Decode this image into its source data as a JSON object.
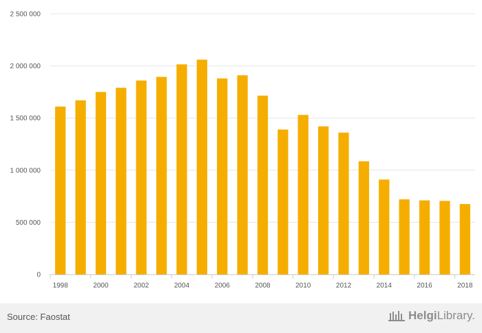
{
  "chart_data": {
    "type": "bar",
    "categories": [
      "1998",
      "1999",
      "2000",
      "2001",
      "2002",
      "2003",
      "2004",
      "2005",
      "2006",
      "2007",
      "2008",
      "2009",
      "2010",
      "2011",
      "2012",
      "2013",
      "2014",
      "2015",
      "2016",
      "2017",
      "2018"
    ],
    "values": [
      1610000,
      1670000,
      1750000,
      1790000,
      1860000,
      1895000,
      2015000,
      2060000,
      1880000,
      1910000,
      1715000,
      1390000,
      1530000,
      1420000,
      1360000,
      1085000,
      910000,
      720000,
      710000,
      705000,
      675000
    ],
    "x_tick_labels": [
      "1998",
      "2000",
      "2002",
      "2004",
      "2006",
      "2008",
      "2010",
      "2012",
      "2014",
      "2016",
      "2018"
    ],
    "y_ticks": [
      0,
      500000,
      1000000,
      1500000,
      2000000,
      2500000
    ],
    "y_tick_labels": [
      "0",
      "500 000",
      "1 000 000",
      "1 500 000",
      "2 000 000",
      "2 500 000"
    ],
    "ylim": [
      0,
      2500000
    ],
    "title": "",
    "xlabel": "",
    "ylabel": "",
    "grid": true,
    "bar_color": "#f5ae00"
  },
  "footer": {
    "source": "Source: Faostat",
    "brand_bold": "Helgi",
    "brand_light": "Library."
  }
}
